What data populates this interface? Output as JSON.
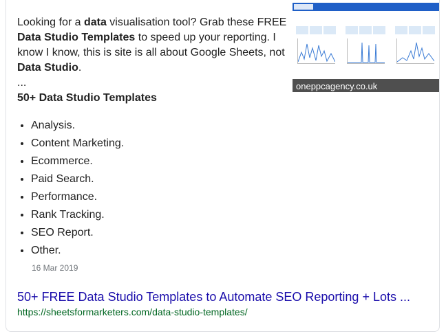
{
  "snippet": {
    "description": {
      "p1": "Looking for a ",
      "b1": "data",
      "p2": " visualisation tool? Grab these FREE ",
      "b2": "Data Studio Templates",
      "p3": " to speed up your reporting. I know I know, this is site is all about Google Sheets, not ",
      "b3": "Data Studio",
      "p4": "."
    },
    "ellipsis": "...",
    "heading": "50+ Data Studio Templates",
    "items": [
      "Analysis.",
      "Content Marketing.",
      "Ecommerce.",
      "Paid Search.",
      "Performance.",
      "Rank Tracking.",
      "SEO Report.",
      "Other."
    ],
    "date": "16 Mar 2019"
  },
  "thumbnail": {
    "caption": "oneppcagency.co.uk",
    "accent": "#1f5fc7"
  },
  "result": {
    "title": "50+ FREE Data Studio Templates to Automate SEO Reporting + Lots ...",
    "url": "https://sheetsformarketers.com/data-studio-templates/"
  },
  "colors": {
    "link": "#1a0dab",
    "url": "#006621",
    "date": "#70757a"
  }
}
